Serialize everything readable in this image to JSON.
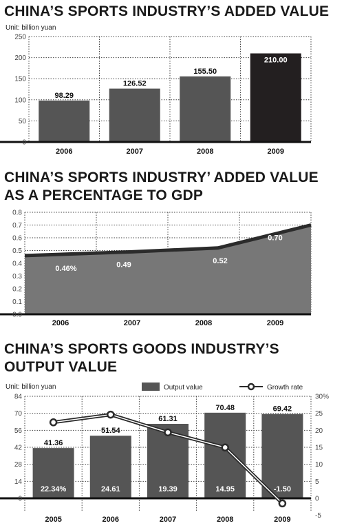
{
  "chart_data": [
    {
      "type": "bar",
      "title": "CHINA’S SPORTS INDUSTRY’S ADDED VALUE",
      "unit": "Unit: billion yuan",
      "categories": [
        "2006",
        "2007",
        "2008",
        "2009"
      ],
      "values": [
        98.29,
        126.52,
        155.5,
        210.0
      ],
      "value_labels": [
        "98.29",
        "126.52",
        "155.50",
        "210.00"
      ],
      "ylim": [
        0,
        250
      ],
      "yticks": [
        "0",
        "50",
        "100",
        "150",
        "200",
        "250"
      ],
      "colors": {
        "bar": "#555555",
        "highlight": "#231f20"
      },
      "grid": true
    },
    {
      "type": "area",
      "title_lines": [
        "CHINA’S SPORTS INDUSTRY’ ADDED VALUE",
        "AS A PERCENTAGE TO GDP"
      ],
      "categories": [
        "2006",
        "2007",
        "2008",
        "2009"
      ],
      "values": [
        0.46,
        0.49,
        0.52,
        0.7
      ],
      "value_labels": [
        "0.46%",
        "0.49",
        "0.52",
        "0.70"
      ],
      "ylim": [
        0,
        0.8
      ],
      "yticks": [
        "0.0",
        "0.1",
        "0.2",
        "0.3",
        "0.4",
        "0.5",
        "0.6",
        "0.7",
        "0.8"
      ],
      "colors": {
        "area": "#777777",
        "line": "#2b2b2b"
      },
      "grid": true
    },
    {
      "type": "bar",
      "title_lines": [
        "CHINA’S SPORTS GOODS INDUSTRY’S",
        "OUTPUT VALUE"
      ],
      "unit": "Unit: billion yuan",
      "categories": [
        "2005",
        "2006",
        "2007",
        "2008",
        "2009"
      ],
      "series": [
        {
          "name": "Output value",
          "values": [
            41.36,
            51.54,
            61.31,
            70.48,
            69.42
          ],
          "value_labels": [
            "41.36",
            "51.54",
            "61.31",
            "70.48",
            "69.42"
          ]
        },
        {
          "name": "Growth rate",
          "values": [
            22.34,
            24.61,
            19.39,
            14.95,
            -1.5
          ],
          "value_labels": [
            "22.34%",
            "24.61",
            "19.39",
            "14.95",
            "-1.50"
          ]
        }
      ],
      "ylim": [
        0,
        84
      ],
      "yticks": [
        "0",
        "14",
        "28",
        "42",
        "56",
        "70",
        "84"
      ],
      "y2lim": [
        -5,
        30
      ],
      "y2ticks": [
        "-5",
        "0",
        "5",
        "10",
        "15",
        "20",
        "25",
        "30%"
      ],
      "colors": {
        "bar": "#555555",
        "line": "#2b2b2b"
      },
      "grid": true
    }
  ]
}
